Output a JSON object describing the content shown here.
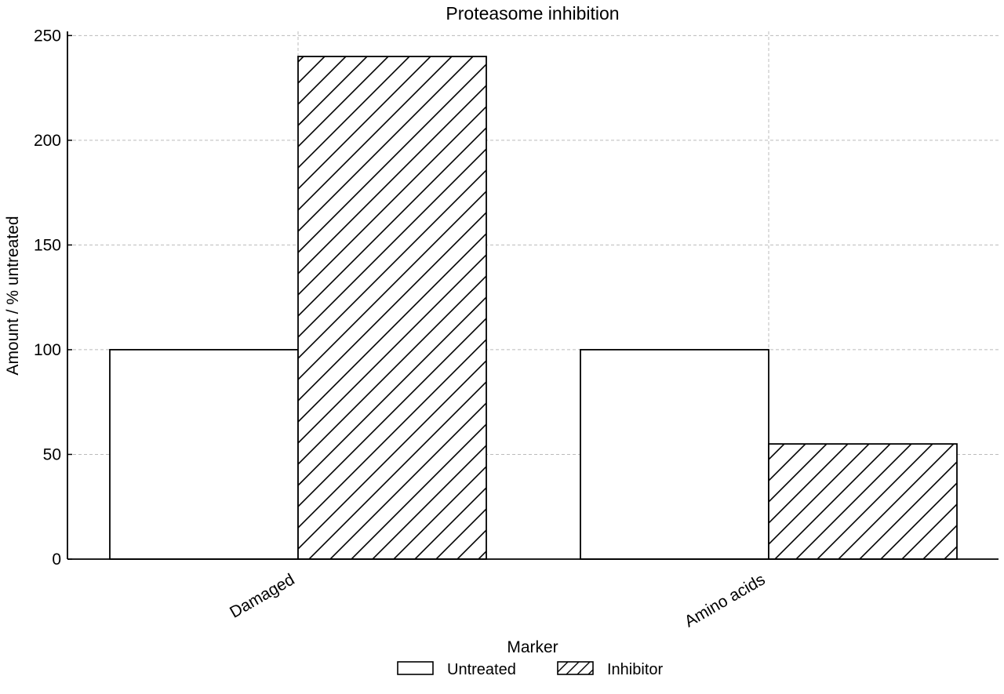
{
  "chart_data": {
    "type": "bar",
    "title": "Proteasome inhibition",
    "xlabel": "",
    "ylabel": "Amount / % untreated",
    "categories": [
      "Damaged",
      "Amino acids"
    ],
    "series": [
      {
        "name": "Untreated",
        "values": [
          100,
          100
        ],
        "pattern": "none"
      },
      {
        "name": "Inhibitor",
        "values": [
          240,
          55
        ],
        "pattern": "diagonal-hatch"
      }
    ],
    "ylim": [
      0,
      252
    ],
    "yticks": [
      0,
      50,
      100,
      150,
      200,
      250
    ],
    "grid": true,
    "legend": {
      "title": "Marker",
      "placement": "bottom-center"
    },
    "colors": {
      "edge": "#000000",
      "fill": "#ffffff",
      "grid": "#bbbbbb"
    }
  }
}
